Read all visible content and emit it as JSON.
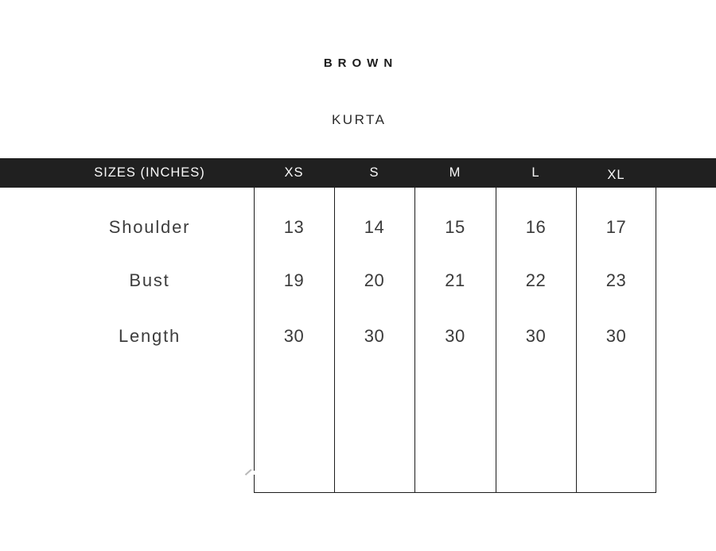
{
  "brand": "BROWN",
  "product": "KURTA",
  "chart_data": {
    "type": "table",
    "title": "BROWN",
    "subtitle": "KURTA",
    "header_label": "SIZES (INCHES)",
    "units": "inches",
    "categories": [
      "XS",
      "S",
      "M",
      "L",
      "XL"
    ],
    "series": [
      {
        "name": "Shoulder",
        "values": [
          "13",
          "14",
          "15",
          "16",
          "17"
        ]
      },
      {
        "name": "Bust",
        "values": [
          "19",
          "20",
          "21",
          "22",
          "23"
        ]
      },
      {
        "name": "Length",
        "values": [
          "30",
          "30",
          "30",
          "30",
          "30"
        ]
      }
    ]
  },
  "colors": {
    "header_bg": "#202020",
    "header_text": "#fafafa",
    "body_text": "#3a3a3a",
    "table_line": "#1d1d1d",
    "background": "#ffffff"
  }
}
